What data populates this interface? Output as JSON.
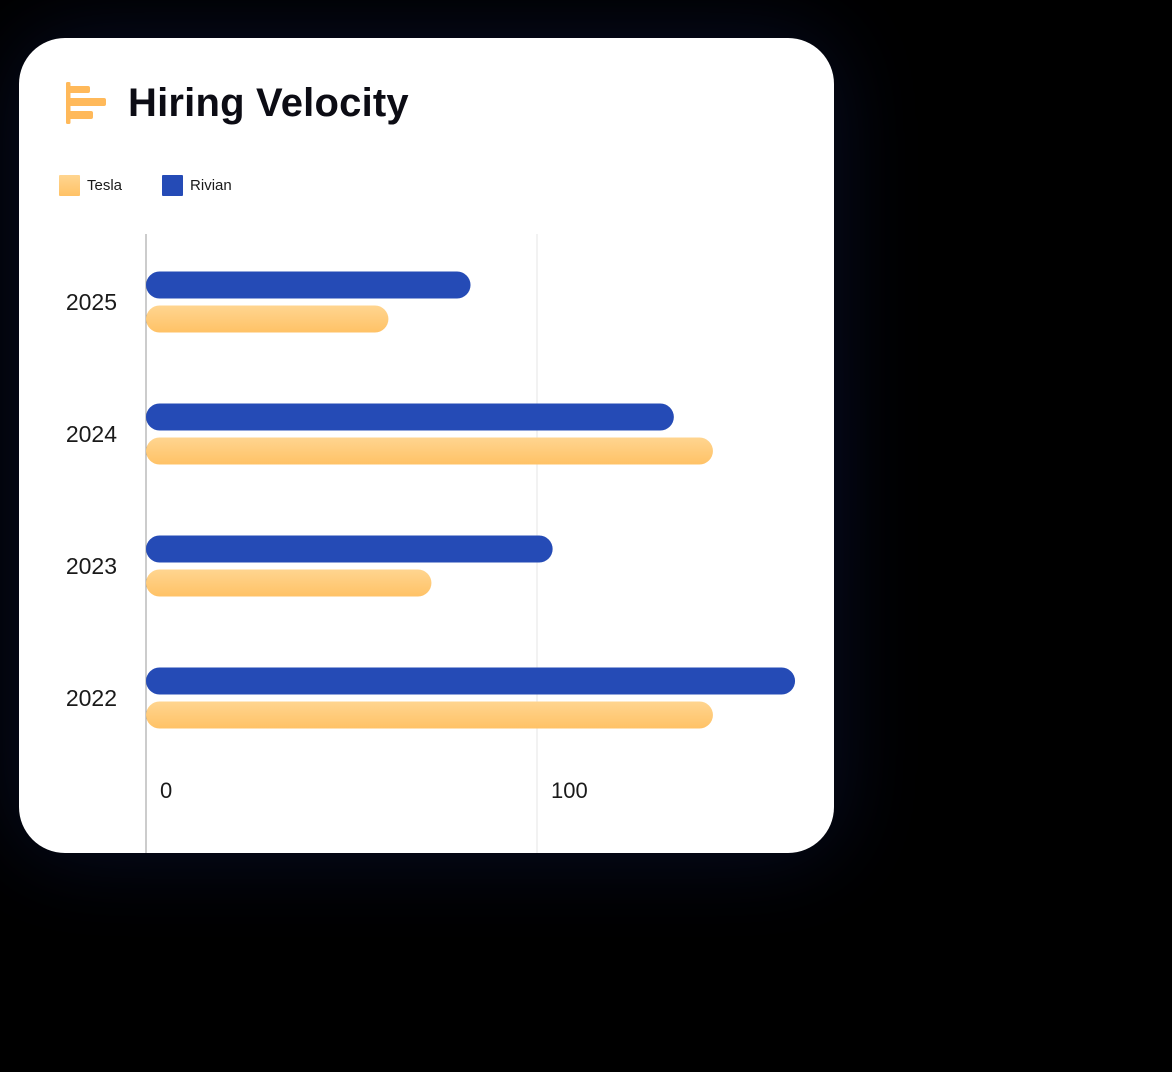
{
  "card": {
    "title": "Hiring Velocity",
    "icon": "horizontal-bar-chart-icon"
  },
  "colors": {
    "tesla_top": "#FFD590",
    "tesla_bottom": "#FFC266",
    "rivian": "#254BB6",
    "icon": "#FFB95A",
    "gridline": "#e6e6e6",
    "axisline": "#9a9a9a"
  },
  "legend": [
    {
      "label": "Tesla",
      "color": "#FFC97A"
    },
    {
      "label": "Rivian",
      "color": "#254BB6"
    }
  ],
  "chart_data": {
    "type": "bar",
    "orientation": "horizontal",
    "title": "Hiring Velocity",
    "categories": [
      "2025",
      "2024",
      "2023",
      "2022"
    ],
    "series": [
      {
        "name": "Rivian",
        "values": [
          83,
          135,
          104,
          166
        ]
      },
      {
        "name": "Tesla",
        "values": [
          62,
          145,
          73,
          145
        ]
      }
    ],
    "xlim": [
      0,
      168
    ],
    "xticks": [
      "0",
      "100"
    ],
    "grid": true,
    "legend_position": "top-left"
  }
}
